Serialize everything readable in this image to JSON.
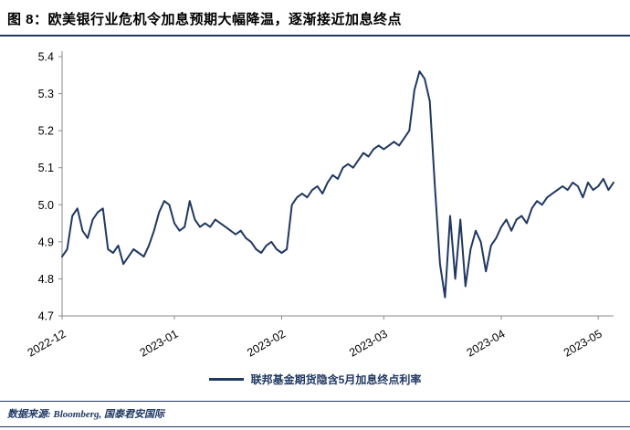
{
  "figure": {
    "title": "图 8：欧美银行业危机令加息预期大幅降温，逐渐接近加息终点",
    "source": "数据来源: Bloomberg, 国泰君安国际"
  },
  "colors": {
    "accent": "#1f3864",
    "line": "#1f3864",
    "axis": "#898989",
    "tick_text": "#000000"
  },
  "chart_data": {
    "type": "line",
    "title": "",
    "xlabel": "",
    "ylabel": "",
    "grid": false,
    "legend_position": "bottom",
    "ylim": [
      4.7,
      5.4
    ],
    "y_ticks": [
      4.7,
      4.8,
      4.9,
      5.0,
      5.1,
      5.2,
      5.3,
      5.4
    ],
    "x_tick_labels": [
      "2022-12",
      "2023-01",
      "2023-02",
      "2023-03",
      "2023-04",
      "2023-05"
    ],
    "x_tick_indices": [
      0,
      22,
      43,
      63,
      86,
      105
    ],
    "series": [
      {
        "name": "联邦基金期货隐含5月加息终点利率",
        "values": [
          4.86,
          4.88,
          4.97,
          4.99,
          4.93,
          4.91,
          4.96,
          4.98,
          4.99,
          4.88,
          4.87,
          4.89,
          4.84,
          4.86,
          4.88,
          4.87,
          4.86,
          4.89,
          4.93,
          4.98,
          5.01,
          5.0,
          4.95,
          4.93,
          4.94,
          5.01,
          4.96,
          4.94,
          4.95,
          4.94,
          4.96,
          4.95,
          4.94,
          4.93,
          4.92,
          4.93,
          4.91,
          4.9,
          4.88,
          4.87,
          4.89,
          4.9,
          4.88,
          4.87,
          4.88,
          5.0,
          5.02,
          5.03,
          5.02,
          5.04,
          5.05,
          5.03,
          5.06,
          5.08,
          5.07,
          5.1,
          5.11,
          5.1,
          5.12,
          5.14,
          5.13,
          5.15,
          5.16,
          5.15,
          5.16,
          5.17,
          5.16,
          5.18,
          5.2,
          5.31,
          5.36,
          5.34,
          5.28,
          5.05,
          4.84,
          4.75,
          4.97,
          4.8,
          4.96,
          4.78,
          4.88,
          4.93,
          4.9,
          4.82,
          4.89,
          4.91,
          4.94,
          4.96,
          4.93,
          4.96,
          4.97,
          4.95,
          4.99,
          5.01,
          5.0,
          5.02,
          5.03,
          5.04,
          5.05,
          5.04,
          5.06,
          5.05,
          5.02,
          5.06,
          5.04,
          5.05,
          5.07,
          5.04,
          5.06
        ]
      }
    ]
  }
}
